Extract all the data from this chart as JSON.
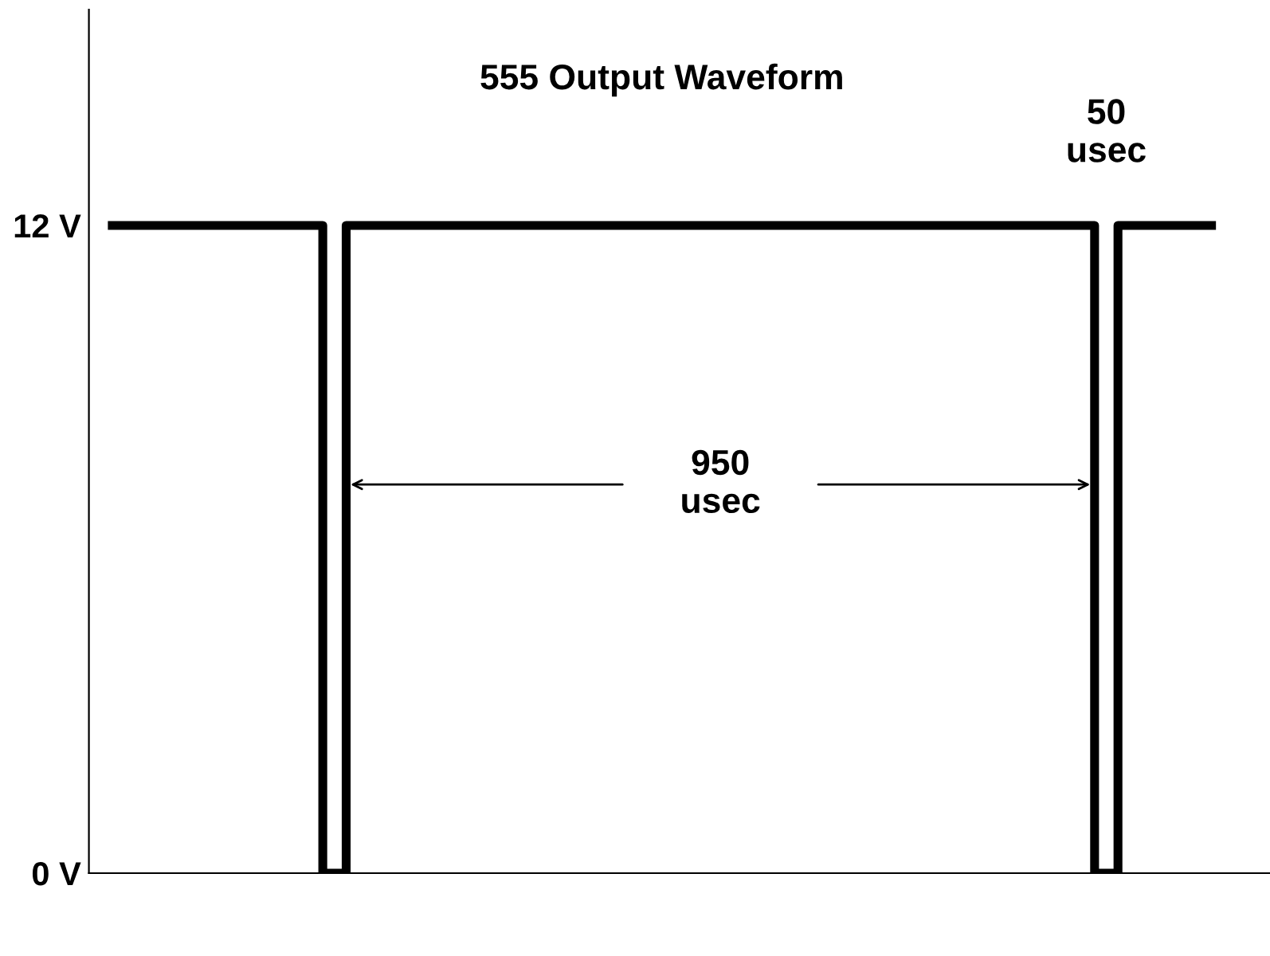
{
  "chart_data": {
    "type": "step",
    "title": "555 Output Waveform",
    "categories": [
      null,
      null,
      null,
      null,
      null,
      null,
      null,
      null,
      null,
      null,
      null,
      null,
      null,
      null,
      null,
      null,
      null,
      null,
      null,
      null,
      null,
      null,
      null,
      null,
      null,
      null,
      null,
      null,
      null,
      null,
      null,
      null,
      null,
      null,
      null,
      null,
      null,
      null,
      null,
      null,
      null,
      null,
      null,
      null,
      null,
      null,
      null,
      null
    ],
    "series": [
      {
        "color": "#000000",
        "values": [
          12,
          12,
          12,
          12,
          12,
          12,
          12,
          12,
          12,
          0,
          12,
          12,
          12,
          12,
          12,
          12,
          12,
          12,
          12,
          12,
          12,
          12,
          12,
          12,
          12,
          12,
          12,
          12,
          12,
          12,
          12,
          12,
          12,
          12,
          12,
          12,
          12,
          12,
          12,
          12,
          12,
          12,
          0,
          12,
          12,
          12,
          12,
          12
        ]
      }
    ],
    "ylim": [
      0,
      16
    ],
    "yticks": [
      {
        "value": 0,
        "label": "0 V"
      },
      {
        "value": 12,
        "label": "12 V"
      }
    ],
    "tick_labels": "y",
    "grid": false,
    "annotations": [
      "950 usec",
      "50 usec"
    ]
  }
}
